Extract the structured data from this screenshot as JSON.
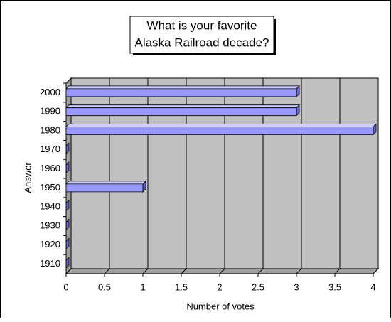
{
  "chart_data": {
    "type": "bar3d",
    "title": [
      "What is your favorite",
      "Alaska Railroad decade?"
    ],
    "x_label": "Number of votes",
    "y_label": "Answer",
    "categories": [
      "2000",
      "1990",
      "1980",
      "1970",
      "1960",
      "1950",
      "1940",
      "1930",
      "1920",
      "1910"
    ],
    "values": [
      3,
      3,
      4,
      0,
      0,
      1,
      0,
      0,
      0,
      0
    ],
    "color": "#9999ff",
    "xlim": [
      0,
      4
    ],
    "xticks": [
      0,
      0.5,
      1,
      1.5,
      2,
      2.5,
      3,
      3.5,
      4
    ],
    "grid": true
  }
}
